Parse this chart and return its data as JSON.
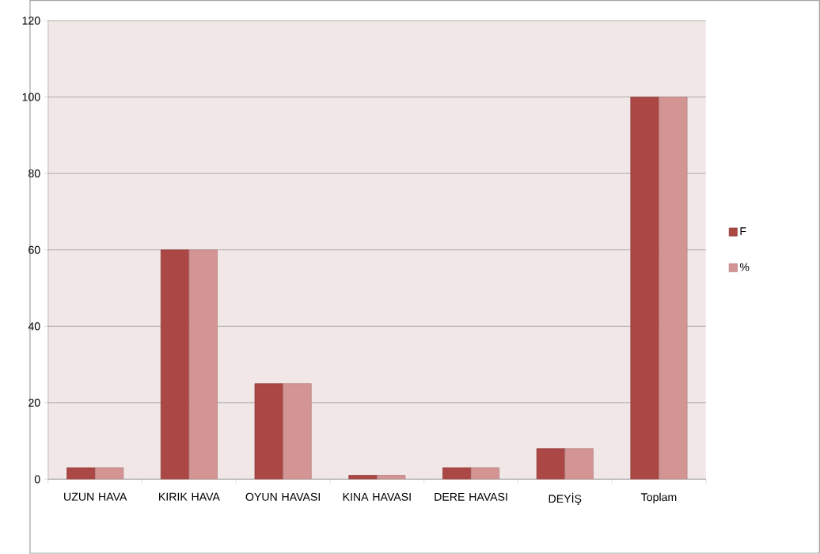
{
  "chart_data": {
    "type": "bar",
    "categories": [
      "UZUN HAVA",
      "KIRIK HAVA",
      "OYUN HAVASI",
      "KINA HAVASI",
      "DERE HAVASI",
      "DEYİŞ",
      "Toplam"
    ],
    "series": [
      {
        "name": "F",
        "color": "#ab4744",
        "values": [
          3,
          60,
          25,
          1,
          3,
          8,
          100
        ]
      },
      {
        "name": "%",
        "color": "#d39594",
        "values": [
          3,
          60,
          25,
          1,
          3,
          8,
          100
        ]
      }
    ],
    "ylim": [
      0,
      120
    ],
    "yticks": [
      0,
      20,
      40,
      60,
      80,
      100,
      120
    ],
    "grid": "y",
    "legend": "right"
  }
}
